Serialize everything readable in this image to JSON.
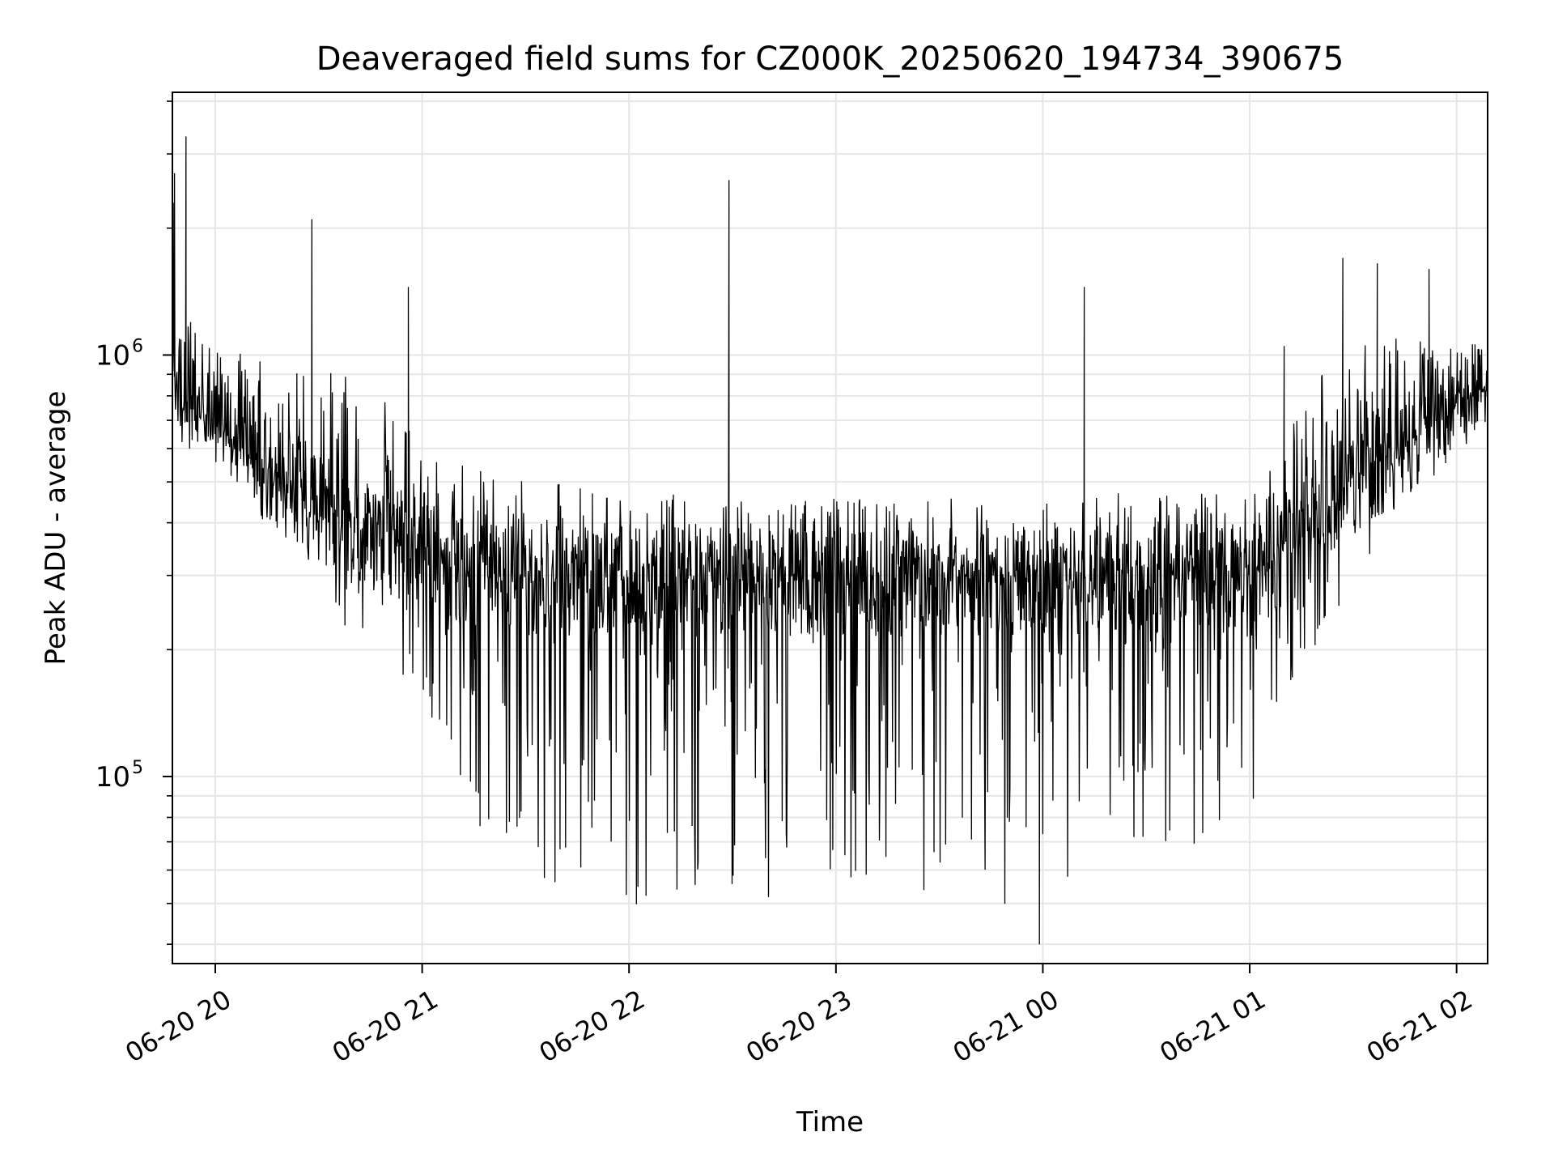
{
  "chart_data": {
    "type": "line",
    "title": "Deaveraged field sums for CZ000K_20250620_194734_390675",
    "xlabel": "Time",
    "ylabel": "Peak ADU - average",
    "y_scale": "log",
    "ylim": [
      36000,
      4200000
    ],
    "xlim": [
      "2025-06-20 19:47:34",
      "2025-06-21 02:09:00"
    ],
    "grid": true,
    "legend": "none",
    "line_color": "#000000",
    "grid_color": "#e6e6e6",
    "x_ticks": [
      {
        "time": "2025-06-20 20:00",
        "label": "06-20 20"
      },
      {
        "time": "2025-06-20 21:00",
        "label": "06-20 21"
      },
      {
        "time": "2025-06-20 22:00",
        "label": "06-20 22"
      },
      {
        "time": "2025-06-20 23:00",
        "label": "06-20 23"
      },
      {
        "time": "2025-06-21 00:00",
        "label": "06-21 00"
      },
      {
        "time": "2025-06-21 01:00",
        "label": "06-21 01"
      },
      {
        "time": "2025-06-21 02:00",
        "label": "06-21 02"
      }
    ],
    "y_ticks": [
      {
        "value": 100000,
        "base": "10",
        "exp": "5"
      },
      {
        "value": 1000000,
        "base": "10",
        "exp": "6"
      }
    ],
    "series": [
      {
        "x": [
          "2025-06-20 19:47:34",
          "2025-06-20 19:50",
          "2025-06-20 19:55",
          "2025-06-20 20:00",
          "2025-06-20 20:10",
          "2025-06-20 20:20",
          "2025-06-20 20:30",
          "2025-06-20 20:40",
          "2025-06-20 20:50",
          "2025-06-20 21:00",
          "2025-06-20 21:10",
          "2025-06-20 21:20",
          "2025-06-20 21:30",
          "2025-06-20 21:40",
          "2025-06-20 21:50",
          "2025-06-20 22:00",
          "2025-06-20 22:10",
          "2025-06-20 22:20",
          "2025-06-20 22:30",
          "2025-06-20 22:40",
          "2025-06-20 22:50",
          "2025-06-20 23:00",
          "2025-06-20 23:10",
          "2025-06-20 23:20",
          "2025-06-20 23:30",
          "2025-06-20 23:40",
          "2025-06-20 23:50",
          "2025-06-21 00:00",
          "2025-06-21 00:10",
          "2025-06-21 00:20",
          "2025-06-21 00:30",
          "2025-06-21 00:40",
          "2025-06-21 00:50",
          "2025-06-21 01:00",
          "2025-06-21 01:10",
          "2025-06-21 01:20",
          "2025-06-21 01:30",
          "2025-06-21 01:40",
          "2025-06-21 01:50",
          "2025-06-21 02:00",
          "2025-06-21 02:09"
        ],
        "upper": [
          2700000,
          1300000,
          1150000,
          1100000,
          1000000,
          960000,
          930000,
          900000,
          780000,
          620000,
          560000,
          520000,
          500000,
          500000,
          490000,
          480000,
          470000,
          460000,
          460000,
          460000,
          460000,
          460000,
          460000,
          460000,
          460000,
          460000,
          460000,
          460000,
          460000,
          470000,
          470000,
          480000,
          480000,
          500000,
          620000,
          900000,
          1050000,
          1100000,
          1100000,
          1100000,
          1150000
        ],
        "baseline": [
          1000000,
          800000,
          720000,
          680000,
          580000,
          500000,
          430000,
          400000,
          360000,
          330000,
          310000,
          300000,
          295000,
          290000,
          290000,
          290000,
          290000,
          290000,
          290000,
          290000,
          290000,
          290000,
          290000,
          290000,
          290000,
          290000,
          290000,
          290000,
          290000,
          290000,
          290000,
          290000,
          290000,
          300000,
          340000,
          420000,
          500000,
          580000,
          660000,
          760000,
          850000
        ],
        "lower": [
          720000,
          690000,
          640000,
          600000,
          520000,
          420000,
          280000,
          210000,
          180000,
          150000,
          90000,
          70000,
          60000,
          55000,
          55000,
          50000,
          48000,
          48000,
          48000,
          50000,
          52000,
          55000,
          55000,
          52000,
          52000,
          50000,
          46000,
          45000,
          55000,
          60000,
          62000,
          65000,
          70000,
          80000,
          130000,
          210000,
          280000,
          360000,
          500000,
          650000,
          760000
        ],
        "spikes": [
          {
            "time": "2025-06-20 19:51:30",
            "value": 3300000
          },
          {
            "time": "2025-06-20 19:48:10",
            "value": 2700000
          },
          {
            "time": "2025-06-20 20:28:00",
            "value": 2100000
          },
          {
            "time": "2025-06-20 20:56:00",
            "value": 1450000
          },
          {
            "time": "2025-06-20 22:29:00",
            "value": 2600000
          },
          {
            "time": "2025-06-21 00:12:00",
            "value": 1450000
          },
          {
            "time": "2025-06-21 01:10:00",
            "value": 1050000
          },
          {
            "time": "2025-06-21 01:27:00",
            "value": 1700000
          },
          {
            "time": "2025-06-21 01:37:00",
            "value": 1650000
          },
          {
            "time": "2025-06-21 01:52:00",
            "value": 1600000
          },
          {
            "time": "2025-06-20 23:59:00",
            "value": 40000
          }
        ]
      }
    ]
  }
}
